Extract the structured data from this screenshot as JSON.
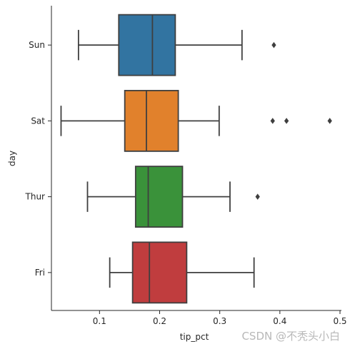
{
  "chart_data": {
    "type": "boxplot",
    "orientation": "horizontal",
    "xlabel": "tip_pct",
    "ylabel": "day",
    "xlim": [
      0.02,
      0.5
    ],
    "xticks": [
      0.1,
      0.2,
      0.3,
      0.4,
      0.5
    ],
    "xtick_labels": [
      "0.1",
      "0.2",
      "0.3",
      "0.4",
      "0.5"
    ],
    "categories": [
      "Sun",
      "Sat",
      "Thur",
      "Fri"
    ],
    "series": [
      {
        "category": "Sun",
        "color": "#3274a1",
        "whisker_low": 0.065,
        "q1": 0.132,
        "median": 0.188,
        "q3": 0.226,
        "whisker_high": 0.337,
        "outliers": [
          0.39
        ]
      },
      {
        "category": "Sat",
        "color": "#e1812c",
        "whisker_low": 0.036,
        "q1": 0.142,
        "median": 0.178,
        "q3": 0.231,
        "whisker_high": 0.299,
        "outliers": [
          0.388,
          0.411,
          0.483
        ]
      },
      {
        "category": "Thur",
        "color": "#3a923a",
        "whisker_low": 0.08,
        "q1": 0.16,
        "median": 0.181,
        "q3": 0.238,
        "whisker_high": 0.317,
        "outliers": [
          0.363
        ]
      },
      {
        "category": "Fri",
        "color": "#c03d3e",
        "whisker_low": 0.117,
        "q1": 0.155,
        "median": 0.183,
        "q3": 0.245,
        "whisker_high": 0.357,
        "outliers": []
      }
    ],
    "grid": false,
    "legend": "none"
  },
  "watermark": "CSDN @不秃头小白"
}
